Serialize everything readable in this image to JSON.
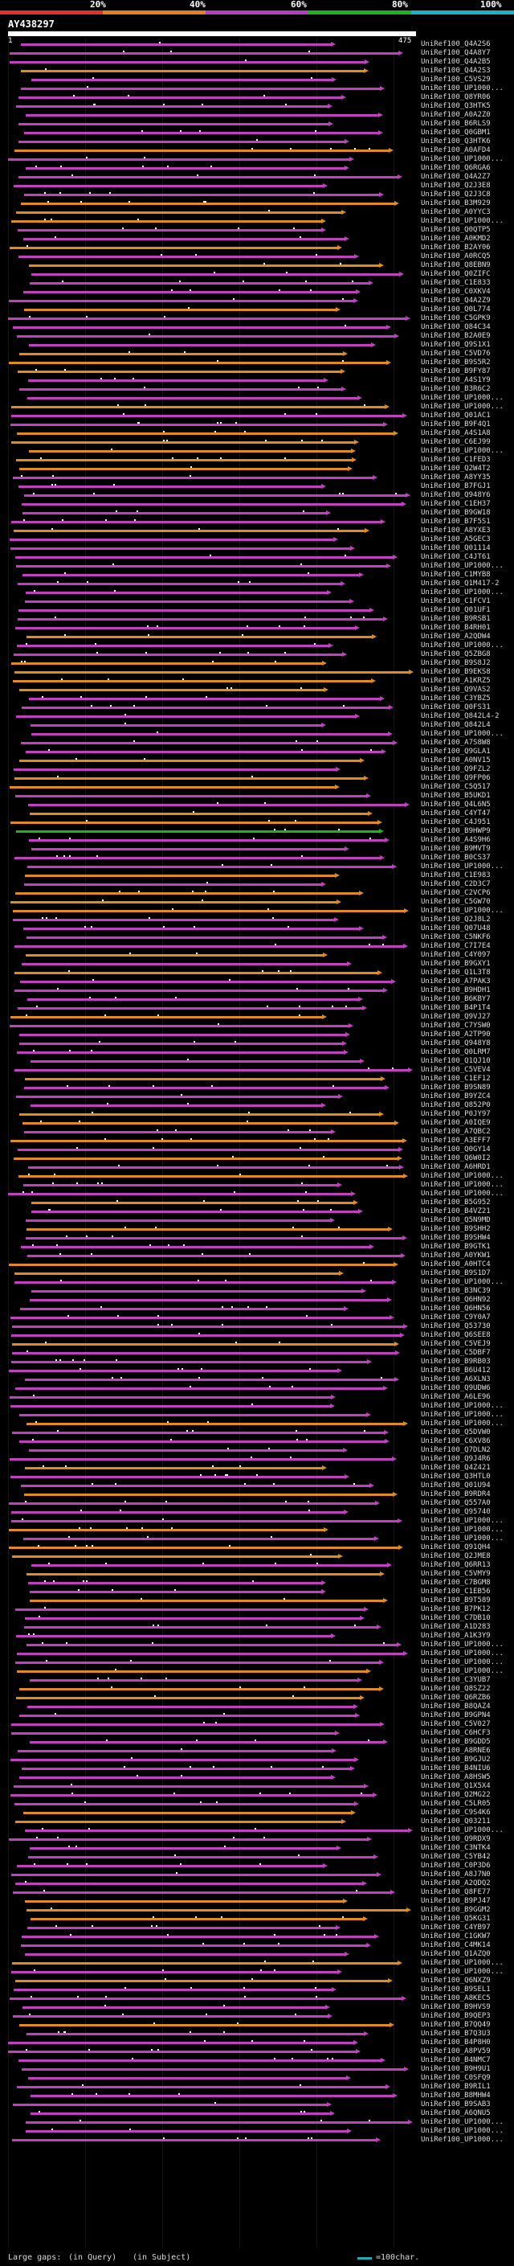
{
  "legend": {
    "labels": [
      "20%",
      "40%",
      "60%",
      "80%",
      "100%"
    ],
    "colors": [
      "#e03030",
      "#e08020",
      "#b040c0",
      "#20b020",
      "#20b0c0"
    ]
  },
  "query": {
    "title": "AY438297",
    "start": "1",
    "end": "475"
  },
  "hits": [
    "UniRef100_Q4A2S6",
    "UniRef100_Q4A8Y7",
    "UniRef100_Q4A2B5",
    "UniRef100_Q4A2S3",
    "UniRef100_C5VS29",
    "UniRef100_UP1000...",
    "UniRef100_Q8YR06",
    "UniRef100_Q3HTK5",
    "UniRef100_A0A2Z0",
    "UniRef100_B6RLS9",
    "UniRef100_Q0GBM1",
    "UniRef100_Q3HTK6",
    "UniRef100_A0AFD4",
    "UniRef100_UP1000...",
    "UniRef100_Q6RGA6",
    "UniRef100_Q4A2Z7",
    "UniRef100_Q2J3E8",
    "UniRef100_Q2J3C8",
    "UniRef100_B3M929",
    "UniRef100_A0YYC3",
    "UniRef100_UP1000...",
    "UniRef100_Q0QTP5",
    "UniRef100_A0KMD2",
    "UniRef100_B2AY06",
    "UniRef100_A0RCQ5",
    "UniRef100_Q8EBN9",
    "UniRef100_Q0ZIFC",
    "UniRef100_C1E833",
    "UniRef100_C0XKV4",
    "UniRef100_Q4A2Z9",
    "UniRef100_Q0L774",
    "UniRef100_C5GPK9",
    "UniRef100_Q84C34",
    "UniRef100_B2A0E9",
    "UniRef100_Q9S1X1",
    "UniRef100_C5VD76",
    "UniRef100_B9S5R2",
    "UniRef100_B9FY87",
    "UniRef100_A4S1Y9",
    "UniRef100_B3R6C2",
    "UniRef100_UP1000...",
    "UniRef100_UP1000...",
    "UniRef100_Q01AC1",
    "UniRef100_B9F4Q1",
    "UniRef100_A4S1A8",
    "UniRef100_C6EJ99",
    "UniRef100_UP1000...",
    "UniRef100_C1FED3",
    "UniRef100_Q2W4T2",
    "UniRef100_A8YY35",
    "UniRef100_B7FGJ1",
    "UniRef100_Q948Y6",
    "UniRef100_C1EH37",
    "UniRef100_B9GW18",
    "UniRef100_B7F5S1",
    "UniRef100_A8YXE3",
    "UniRef100_A5GEC3",
    "UniRef100_Q01114",
    "UniRef100_C4JT61",
    "UniRef100_UP1000...",
    "UniRef100_C1MYB8",
    "UniRef100_Q1M417-2",
    "UniRef100_UP1000...",
    "UniRef100_C1FCV1",
    "UniRef100_Q01UF1",
    "UniRef100_B9RSB1",
    "UniRef100_B4RH01",
    "UniRef100_A2QDW4",
    "UniRef100_UP1000...",
    "UniRef100_Q5ZBG8",
    "UniRef100_B9S8J2",
    "UniRef100_B9EKS8",
    "UniRef100_A1KRZ5",
    "UniRef100_Q9VAS2",
    "UniRef100_C3YBZ5",
    "UniRef100_Q0FS31",
    "UniRef100_Q842L4-2",
    "UniRef100_Q842L4",
    "UniRef100_UP1000...",
    "UniRef100_A7S8W8",
    "UniRef100_Q9GLA1",
    "UniRef100_A0NV15",
    "UniRef100_Q9FZL2",
    "UniRef100_Q9FP06",
    "UniRef100_C5Q517",
    "UniRef100_B5UKD1",
    "UniRef100_Q4L6N5",
    "UniRef100_C4YT47",
    "UniRef100_C4J951",
    "UniRef100_B9HWP9",
    "UniRef100_A4S9H6",
    "UniRef100_B9MVT9",
    "UniRef100_B0CS37",
    "UniRef100_UP1000...",
    "UniRef100_C1E983",
    "UniRef100_C2D3C7",
    "UniRef100_C2VCP6",
    "UniRef100_C5GW70",
    "UniRef100_UP1000...",
    "UniRef100_Q2J8L2",
    "UniRef100_Q07U48",
    "UniRef100_C5NKF6",
    "UniRef100_C7I7E4",
    "UniRef100_C4Y097",
    "UniRef100_B9GXY1",
    "UniRef100_Q1L3T8",
    "UniRef100_A7PAK3",
    "UniRef100_B9HDH1",
    "UniRef100_B6KBY7",
    "UniRef100_B4P1T4",
    "UniRef100_Q9VJ27",
    "UniRef100_C7YSW0",
    "UniRef100_A2TP90",
    "UniRef100_Q948Y8",
    "UniRef100_Q0LRM7",
    "UniRef100_Q1QJ10",
    "UniRef100_C5VEV4",
    "UniRef100_C1EF12",
    "UniRef100_B9SN89",
    "UniRef100_B9YZC4",
    "UniRef100_Q852P0",
    "UniRef100_P0JY97",
    "UniRef100_A0IQE9",
    "UniRef100_A7QBC2",
    "UniRef100_A3EFF7",
    "UniRef100_Q0GY14",
    "UniRef100_Q6W0I2",
    "UniRef100_A6HRD1",
    "UniRef100_UP1000...",
    "UniRef100_UP1000...",
    "UniRef100_UP1000...",
    "UniRef100_B5G952",
    "UniRef100_B4VZ21",
    "UniRef100_Q5N9MD",
    "UniRef100_B9SHH2",
    "UniRef100_B9SHW4",
    "UniRef100_B9GTK1",
    "UniRef100_A0YKW1",
    "UniRef100_A0HTC4",
    "UniRef100_B9S1D7",
    "UniRef100_UP1000...",
    "UniRef100_B3NC39",
    "UniRef100_Q6HN92",
    "UniRef100_Q6HN56",
    "UniRef100_C9Y0A7",
    "UniRef100_Q53730",
    "UniRef100_Q6SEE8",
    "UniRef100_C5VEJ9",
    "UniRef100_C5DBF7",
    "UniRef100_B9RB03",
    "UniRef100_B6U412",
    "UniRef100_A6XLN3",
    "UniRef100_Q9UDW6",
    "UniRef100_A6LE96",
    "UniRef100_UP1000...",
    "UniRef100_UP1000...",
    "UniRef100_UP1000...",
    "UniRef100_Q5DVW0",
    "UniRef100_C6XV86",
    "UniRef100_Q7DLN2",
    "UniRef100_Q9J4R6",
    "UniRef100_Q4Z421",
    "UniRef100_Q3HTL0",
    "UniRef100_Q01U94",
    "UniRef100_B9RDR4",
    "UniRef100_Q557A0",
    "UniRef100_Q95740",
    "UniRef100_UP1000...",
    "UniRef100_UP1000...",
    "UniRef100_UP1000...",
    "UniRef100_Q91QH4",
    "UniRef100_Q2JME8",
    "UniRef100_Q6RR13",
    "UniRef100_C5VMY9",
    "UniRef100_C7BGM8",
    "UniRef100_C1EB56",
    "UniRef100_B9T589",
    "UniRef100_B7PK12",
    "UniRef100_C7DB10",
    "UniRef100_A1D283",
    "UniRef100_A1K3Y9",
    "UniRef100_UP1000...",
    "UniRef100_UP1000...",
    "UniRef100_UP1000...",
    "UniRef100_UP1000...",
    "UniRef100_C3YUB7",
    "UniRef100_Q8SZ22",
    "UniRef100_Q6RZB6",
    "UniRef100_B8QAZ4",
    "UniRef100_B9GPN4",
    "UniRef100_C5V027",
    "UniRef100_C6HCF3",
    "UniRef100_B9GDD5",
    "UniRef100_A8RNE6",
    "UniRef100_B9GJU2",
    "UniRef100_B4NIU6",
    "UniRef100_A8HSW5",
    "UniRef100_Q1X5X4",
    "UniRef100_Q2MG22",
    "UniRef100_C5LR05",
    "UniRef100_C9S4K6",
    "UniRef100_Q03211",
    "UniRef100_UP1000...",
    "UniRef100_Q9RDX9",
    "UniRef100_C3NTK4",
    "UniRef100_C5YB42",
    "UniRef100_C0P3D6",
    "UniRef100_A8J7N0",
    "UniRef100_A2QDQ2",
    "UniRef100_Q8FE77",
    "UniRef100_B9PJ47",
    "UniRef100_B9GGM2",
    "UniRef100_Q5KG31",
    "UniRef100_C4YB97",
    "UniRef100_C1GKW7",
    "UniRef100_C4MK14",
    "UniRef100_Q1AZQ0",
    "UniRef100_UP1000...",
    "UniRef100_UP1000...",
    "UniRef100_Q6NXZ9",
    "UniRef100_B9SEL1",
    "UniRef100_A8KEC5",
    "UniRef100_B9HVS9",
    "UniRef100_B9QEP3",
    "UniRef100_B7QQ49",
    "UniRef100_B7Q3U3",
    "UniRef100_B4P8H0",
    "UniRef100_A8PV59",
    "UniRef100_B4NMC7",
    "UniRef100_B9H9U1",
    "UniRef100_C0SFQ9",
    "UniRef100_B9RIL1",
    "UniRef100_B8MHW4",
    "UniRef100_B9SAB3",
    "UniRef100_A6QNU5",
    "UniRef100_UP1000...",
    "UniRef100_UP1000...",
    "UniRef100_UP1000..."
  ],
  "footer": {
    "gaps_label": "Large gaps:",
    "in_query": "(in Query)",
    "in_subject": "(in Subject)",
    "scale_label": "=100char."
  },
  "colors": {
    "background": "#000000",
    "magenta": "#c040c0",
    "orange": "#e08a20",
    "green": "#20b020"
  }
}
